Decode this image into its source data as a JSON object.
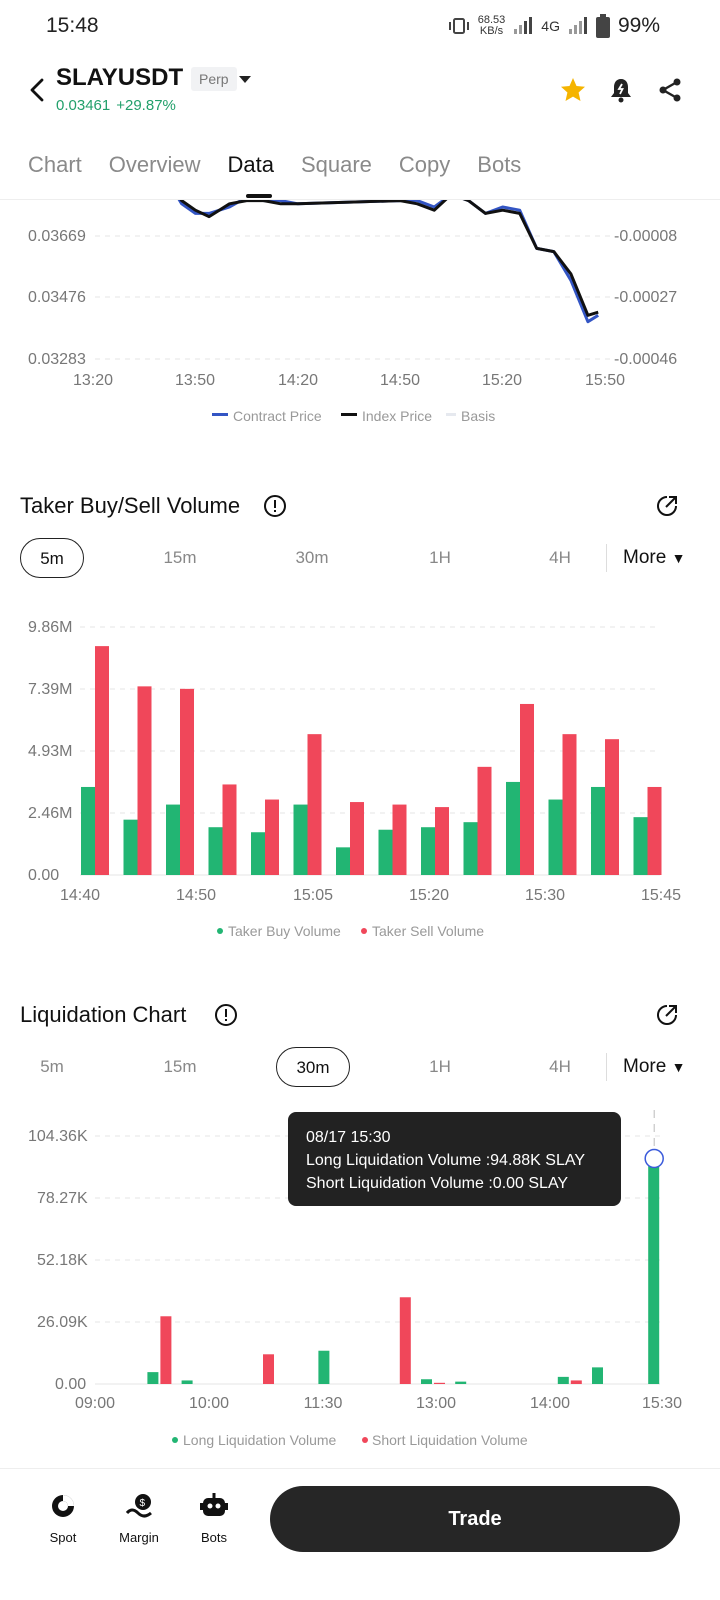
{
  "status_bar": {
    "time": "15:48",
    "net_speed_value": "68.53",
    "net_speed_unit": "KB/s",
    "network": "4G",
    "battery": "99%"
  },
  "header": {
    "symbol": "SLAYUSDT",
    "badge": "Perp",
    "price": "0.03461",
    "change": "+29.87%",
    "icons": [
      "back-icon",
      "star-icon",
      "bell-icon",
      "share-icon"
    ],
    "colors": {
      "up": "#22a06b",
      "star": "#f5b400"
    }
  },
  "tabs": [
    "Chart",
    "Overview",
    "Data",
    "Square",
    "Copy",
    "Bots"
  ],
  "active_tab": "Data",
  "price_chart": {
    "chart_data": {
      "type": "line",
      "x_ticks": [
        "13:20",
        "13:50",
        "14:20",
        "14:50",
        "15:20",
        "15:50"
      ],
      "y_left_ticks": [
        "0.03669",
        "0.03476",
        "0.03283"
      ],
      "y_right_ticks": [
        "-0.00008",
        "-0.00027",
        "-0.00046"
      ],
      "series": [
        {
          "name": "Contract Price",
          "color": "#3355c4",
          "x": [
            "13:38",
            "13:42",
            "13:46",
            "13:50",
            "13:54",
            "14:00",
            "14:05",
            "14:10",
            "14:15",
            "14:20",
            "14:50",
            "14:55",
            "15:00",
            "15:05",
            "15:10",
            "15:15",
            "15:20",
            "15:25",
            "15:30",
            "15:35",
            "15:40",
            "15:45",
            "15:48"
          ],
          "y": [
            0.0388,
            0.0384,
            0.0377,
            0.0374,
            0.0374,
            0.0376,
            0.0379,
            0.0378,
            0.0378,
            0.0377,
            0.0378,
            0.0378,
            0.0376,
            0.038,
            0.0378,
            0.0374,
            0.0376,
            0.0375,
            0.0363,
            0.0362,
            0.0353,
            0.034,
            0.0342
          ]
        },
        {
          "name": "Index Price",
          "color": "#111111",
          "x": [
            "13:38",
            "13:42",
            "13:46",
            "13:50",
            "13:54",
            "14:00",
            "14:05",
            "14:10",
            "14:15",
            "14:20",
            "14:50",
            "14:55",
            "15:00",
            "15:05",
            "15:10",
            "15:15",
            "15:20",
            "15:25",
            "15:30",
            "15:35",
            "15:40",
            "15:45",
            "15:48"
          ],
          "y": [
            0.0388,
            0.0384,
            0.0378,
            0.0375,
            0.0373,
            0.0377,
            0.0378,
            0.0378,
            0.0377,
            0.0377,
            0.0378,
            0.0377,
            0.0375,
            0.038,
            0.0378,
            0.0374,
            0.0375,
            0.0374,
            0.0363,
            0.0362,
            0.0355,
            0.0342,
            0.0343
          ]
        },
        {
          "name": "Basis",
          "color": "#e6e9ef"
        }
      ]
    }
  },
  "taker_section": {
    "title": "Taker Buy/Sell Volume",
    "intervals": [
      "5m",
      "15m",
      "30m",
      "1H",
      "4H"
    ],
    "active_interval": "5m",
    "more": "More",
    "chart_data": {
      "type": "bar",
      "y_ticks": [
        "9.86M",
        "7.39M",
        "4.93M",
        "2.46M",
        "0.00"
      ],
      "ylim": [
        0,
        9.86
      ],
      "x_ticks": [
        "14:40",
        "14:50",
        "15:05",
        "15:20",
        "15:30",
        "15:45"
      ],
      "series": [
        {
          "name": "Taker Buy Volume",
          "color": "#22b573",
          "values": [
            3.5,
            2.2,
            2.8,
            1.9,
            1.7,
            2.8,
            1.1,
            1.8,
            1.9,
            2.1,
            3.7,
            3.0,
            3.5,
            2.3
          ]
        },
        {
          "name": "Taker Sell Volume",
          "color": "#f0475a",
          "values": [
            9.1,
            7.5,
            7.4,
            3.6,
            3.0,
            5.6,
            2.9,
            2.8,
            2.7,
            4.3,
            6.8,
            5.6,
            5.4,
            3.5
          ]
        }
      ]
    }
  },
  "liquidation_section": {
    "title": "Liquidation Chart",
    "intervals": [
      "5m",
      "15m",
      "30m",
      "1H",
      "4H"
    ],
    "active_interval": "30m",
    "more": "More",
    "tooltip": {
      "time": "08/17 15:30",
      "long": "Long Liquidation Volume :94.88K SLAY",
      "short": "Short Liquidation Volume :0.00 SLAY"
    },
    "chart_data": {
      "type": "bar",
      "y_ticks": [
        "104.36K",
        "78.27K",
        "52.18K",
        "26.09K",
        "0.00"
      ],
      "ylim": [
        0,
        104.36
      ],
      "x_ticks": [
        "09:00",
        "10:00",
        "11:30",
        "13:00",
        "14:00",
        "15:30"
      ],
      "series": [
        {
          "name": "Long Liquidation Volume",
          "color": "#22b573",
          "values": [
            0,
            0,
            5.0,
            1.5,
            0,
            0,
            0,
            14.0,
            0,
            0,
            2.0,
            1.0,
            0,
            0,
            3.0,
            7.0,
            94.88
          ]
        },
        {
          "name": "Short Liquidation Volume",
          "color": "#f0475a",
          "values": [
            0,
            0,
            28.5,
            0,
            0,
            12.5,
            0,
            0,
            0,
            36.5,
            0.5,
            0,
            0,
            0,
            1.5,
            0,
            0
          ]
        }
      ]
    }
  },
  "bottom_nav": {
    "items": [
      "Spot",
      "Margin",
      "Bots"
    ],
    "trade": "Trade"
  }
}
